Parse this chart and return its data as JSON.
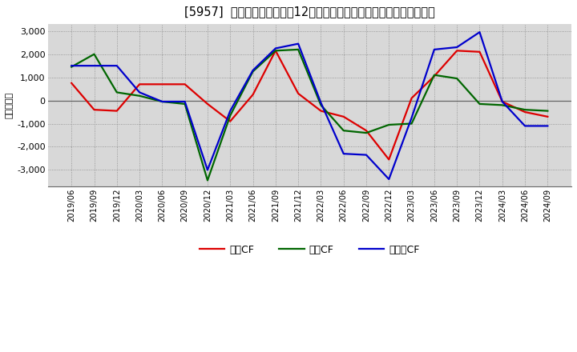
{
  "title": "[5957]  キャッシュフローの12か月移動合計の対前年同期増減額の推移",
  "ylabel": "（百万円）",
  "background_color": "#ffffff",
  "plot_background": "#d8d8d8",
  "ylim": [
    -3700,
    3300
  ],
  "yticks": [
    -3000,
    -2000,
    -1000,
    0,
    1000,
    2000,
    3000
  ],
  "dates": [
    "2019/06",
    "2019/09",
    "2019/12",
    "2020/03",
    "2020/06",
    "2020/09",
    "2020/12",
    "2021/03",
    "2021/06",
    "2021/09",
    "2021/12",
    "2022/03",
    "2022/06",
    "2022/09",
    "2022/12",
    "2023/03",
    "2023/06",
    "2023/09",
    "2023/12",
    "2024/03",
    "2024/06",
    "2024/09"
  ],
  "eigyo_cf": [
    750,
    -400,
    -450,
    700,
    700,
    700,
    -150,
    -900,
    250,
    2150,
    300,
    -450,
    -700,
    -1300,
    -2550,
    100,
    1050,
    2150,
    2100,
    -50,
    -500,
    -700
  ],
  "toshi_cf": [
    1450,
    2000,
    350,
    200,
    -50,
    -150,
    -3450,
    -650,
    1250,
    2150,
    2200,
    -200,
    -1300,
    -1400,
    -1050,
    -1000,
    1100,
    950,
    -150,
    -200,
    -400,
    -450
  ],
  "free_cf": [
    1500,
    1500,
    1500,
    350,
    -50,
    -50,
    -3000,
    -450,
    1300,
    2250,
    2450,
    -100,
    -2300,
    -2350,
    -3400,
    -750,
    2200,
    2300,
    2950,
    -50,
    -1100,
    -1100
  ],
  "eigyo_color": "#dd0000",
  "toshi_color": "#006600",
  "free_color": "#0000cc",
  "line_width": 1.6,
  "legend_labels": [
    "営業CF",
    "投資CF",
    "フリーCF"
  ]
}
